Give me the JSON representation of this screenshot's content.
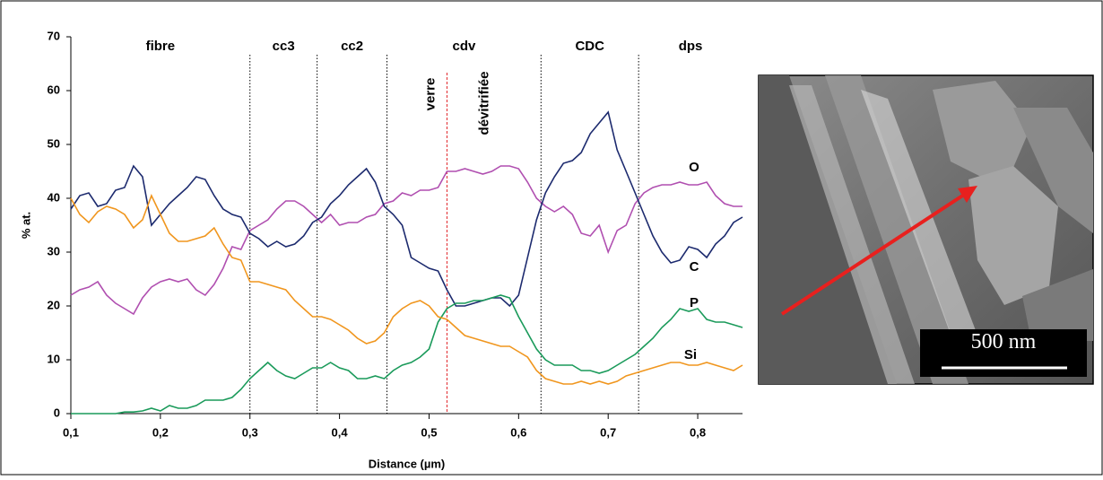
{
  "chart_data": {
    "type": "line",
    "x_label": "Distance (µm)",
    "y_label": "% at.",
    "x": [
      0.1,
      0.11,
      0.12,
      0.13,
      0.14,
      0.15,
      0.16,
      0.17,
      0.18,
      0.19,
      0.2,
      0.21,
      0.22,
      0.23,
      0.24,
      0.25,
      0.26,
      0.27,
      0.28,
      0.29,
      0.3,
      0.31,
      0.32,
      0.33,
      0.34,
      0.35,
      0.36,
      0.37,
      0.38,
      0.39,
      0.4,
      0.41,
      0.42,
      0.43,
      0.44,
      0.45,
      0.46,
      0.47,
      0.48,
      0.49,
      0.5,
      0.51,
      0.52,
      0.53,
      0.54,
      0.55,
      0.56,
      0.57,
      0.58,
      0.59,
      0.6,
      0.61,
      0.62,
      0.63,
      0.64,
      0.65,
      0.66,
      0.67,
      0.68,
      0.69,
      0.7,
      0.71,
      0.72,
      0.73,
      0.74,
      0.75,
      0.76,
      0.77,
      0.78,
      0.79,
      0.8,
      0.81,
      0.82,
      0.83,
      0.84,
      0.85
    ],
    "series": [
      {
        "name": "O",
        "color": "#b04fb0",
        "values": [
          22,
          23,
          23.5,
          24.5,
          22,
          20.5,
          19.5,
          18.5,
          21.5,
          23.5,
          24.5,
          25,
          24.5,
          25,
          23,
          22,
          24,
          27,
          31,
          30.5,
          34,
          35,
          36,
          38,
          39.5,
          39.5,
          38.5,
          37,
          35.5,
          37,
          35,
          35.5,
          35.5,
          36.5,
          37,
          39,
          39.5,
          41,
          40.5,
          41.5,
          41.5,
          42,
          45,
          45,
          45.5,
          45,
          44.5,
          45,
          46,
          46,
          45.5,
          43,
          40,
          38.5,
          37.5,
          38.5,
          37,
          33.5,
          33,
          35,
          30,
          34,
          35,
          39,
          41,
          42,
          42.5,
          42.5,
          43,
          42.5,
          42.5,
          43,
          40.5,
          39,
          38.5,
          38.5
        ]
      },
      {
        "name": "C",
        "color": "#1c2a6e",
        "values": [
          38,
          40.5,
          41,
          38.5,
          39,
          41.5,
          42,
          46,
          44,
          35,
          37,
          39,
          40.5,
          42,
          44,
          43.5,
          40.5,
          38,
          37,
          36.5,
          33.5,
          32.5,
          31,
          32,
          31,
          31.5,
          33,
          35.5,
          36.5,
          39,
          40.5,
          42.5,
          44,
          45.5,
          43,
          38.5,
          37,
          35,
          29,
          28,
          27,
          26.5,
          23,
          20,
          20,
          20.5,
          21,
          21.5,
          21.5,
          20,
          22,
          29,
          36,
          41,
          44,
          46.5,
          47,
          48.5,
          52,
          54,
          56,
          49,
          45,
          41,
          37,
          33,
          30,
          28,
          28.5,
          31,
          30.5,
          29,
          31.5,
          33,
          35.5,
          36.5
        ]
      },
      {
        "name": "P",
        "color": "#1a9a5a",
        "values": [
          0,
          0,
          0,
          0,
          0,
          0,
          0.3,
          0.3,
          0.5,
          1,
          0.5,
          1.5,
          1,
          1,
          1.5,
          2.5,
          2.5,
          2.5,
          3,
          4.5,
          6.5,
          8,
          9.5,
          8,
          7,
          6.5,
          7.5,
          8.5,
          8.5,
          9.5,
          8.5,
          8,
          6.5,
          6.5,
          7,
          6.5,
          8,
          9,
          9.5,
          10.5,
          12,
          17,
          19.5,
          20.5,
          20.5,
          21,
          21,
          21.5,
          22,
          21.5,
          18,
          15,
          12,
          10,
          9,
          9,
          9,
          8,
          8,
          7.5,
          8,
          9,
          10,
          11,
          12.5,
          14,
          16,
          17.5,
          19.5,
          19,
          19.5,
          17.5,
          17,
          17,
          16.5,
          16
        ]
      },
      {
        "name": "Si",
        "color": "#f0961e",
        "values": [
          40,
          37,
          35.5,
          37.5,
          38.5,
          38,
          37,
          34.5,
          36,
          40.5,
          37,
          33.5,
          32,
          32,
          32.5,
          33,
          34.5,
          31.5,
          29,
          28.5,
          24.5,
          24.5,
          24,
          23.5,
          23,
          21,
          19.5,
          18,
          18,
          17.5,
          16.5,
          15.5,
          14,
          13,
          13.5,
          15,
          18,
          19.5,
          20.5,
          21,
          20,
          18,
          17.5,
          16,
          14.5,
          14,
          13.5,
          13,
          12.5,
          12.5,
          11.5,
          10.5,
          8,
          6.5,
          6,
          5.5,
          5.5,
          6,
          5.5,
          6,
          5.5,
          6,
          7,
          7.5,
          8,
          8.5,
          9,
          9.5,
          9.5,
          9,
          9,
          9.5,
          9,
          8.5,
          8,
          9
        ]
      }
    ],
    "xlim": [
      0.1,
      0.85
    ],
    "xticks": [
      {
        "value": 0.1,
        "label": "0,1"
      },
      {
        "value": 0.2,
        "label": "0,2"
      },
      {
        "value": 0.3,
        "label": "0,3"
      },
      {
        "value": 0.4,
        "label": "0,4"
      },
      {
        "value": 0.5,
        "label": "0,5"
      },
      {
        "value": 0.6,
        "label": "0,6"
      },
      {
        "value": 0.7,
        "label": "0,7"
      },
      {
        "value": 0.8,
        "label": "0,8"
      }
    ],
    "ylim": [
      0,
      70
    ],
    "yticks": [
      0,
      10,
      20,
      30,
      40,
      50,
      60,
      70
    ],
    "boundaries": [
      0.3,
      0.375,
      0.453,
      0.625,
      0.734
    ],
    "regions": [
      "fibre",
      "cc3",
      "cc2",
      "cdv",
      "CDC",
      "dps"
    ],
    "interface": {
      "x": 0.52,
      "color": "#e0262a",
      "labels": [
        "verre",
        "dévitrifiée"
      ]
    }
  },
  "micrograph": {
    "scale_label": "500 nm"
  }
}
